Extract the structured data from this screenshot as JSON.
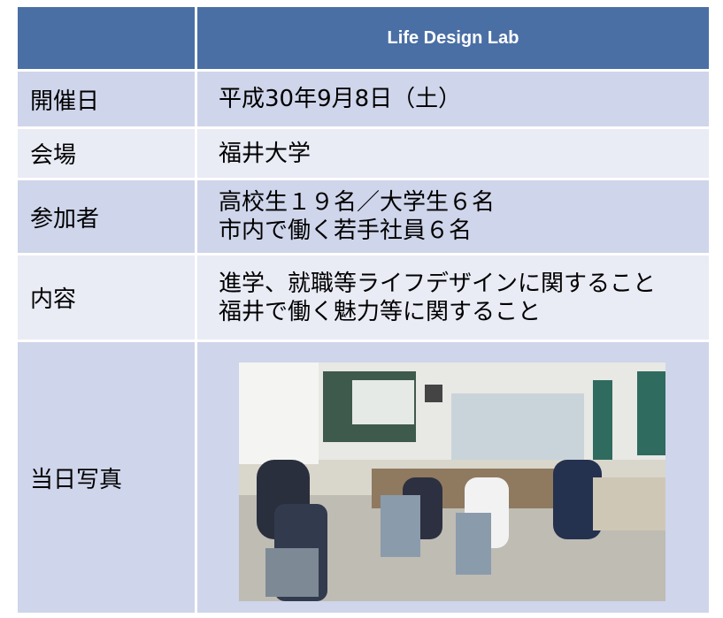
{
  "header": {
    "title": "Life Design Lab"
  },
  "rows": [
    {
      "label": "開催日",
      "lines": [
        "平成30年9月8日（土）"
      ]
    },
    {
      "label": "会場",
      "lines": [
        "福井大学"
      ]
    },
    {
      "label": "参加者",
      "lines": [
        "高校生１９名／大学生６名",
        "市内で働く若手社員６名"
      ]
    },
    {
      "label": "内容",
      "lines": [
        "進学、就職等ライフデザインに関すること",
        "福井で働く魅力等に関すること"
      ]
    },
    {
      "label": "当日写真"
    }
  ]
}
